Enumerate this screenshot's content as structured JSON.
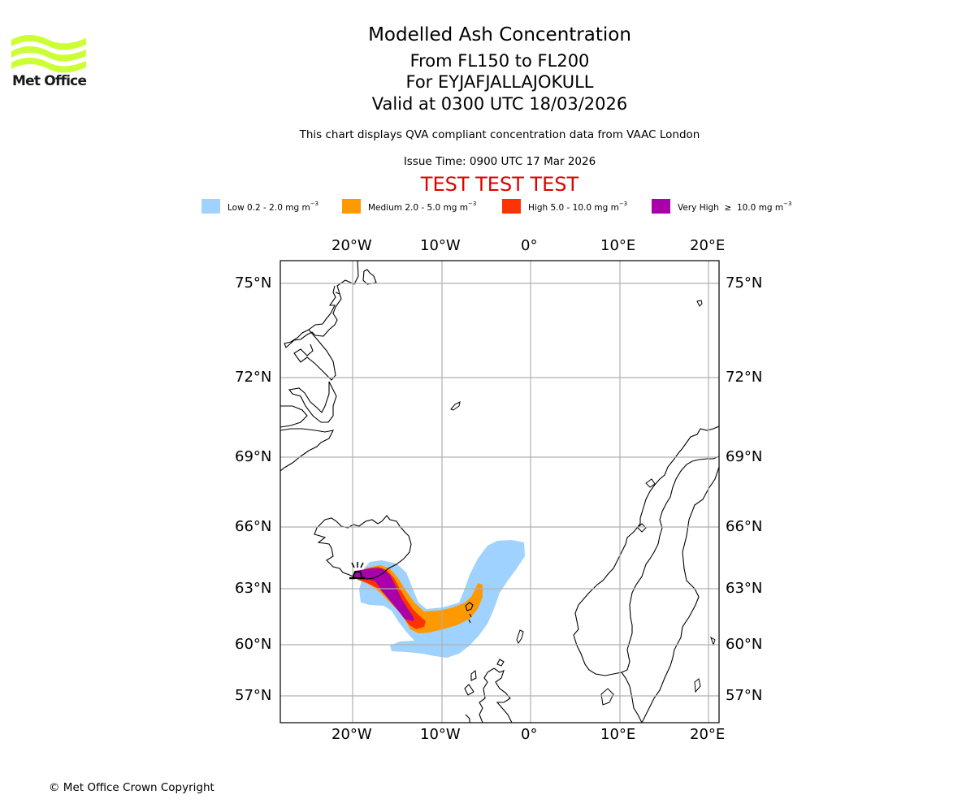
{
  "brand": {
    "logo_text": "Met Office",
    "logo_color": "#ccff33"
  },
  "header": {
    "title": "Modelled Ash Concentration",
    "levels": "From FL150 to FL200",
    "volcano": "For EYJAFJALLAJOKULL",
    "valid": "Valid at 0300 UTC 18/03/2026",
    "description": "This chart displays QVA compliant concentration data from VAAC London",
    "issue_time": "Issue Time: 0900 UTC 17 Mar 2026",
    "test_banner": "TEST TEST TEST",
    "test_color": "#e00000"
  },
  "legend": [
    {
      "label": "Low 0.2 - 2.0 mg m",
      "unit_exp": "−3",
      "color": "#a0d2ff"
    },
    {
      "label": "Medium 2.0 - 5.0 mg m",
      "unit_exp": "−3",
      "color": "#ff9900"
    },
    {
      "label": "High 5.0 - 10.0 mg m",
      "unit_exp": "−3",
      "color": "#ff3300"
    },
    {
      "label": "Very High  ≥  10.0 mg m",
      "unit_exp": "−3",
      "color": "#aa00aa"
    }
  ],
  "axes": {
    "lon_ticks": [
      "20°W",
      "10°W",
      "0°",
      "10°E",
      "20°E"
    ],
    "lat_ticks": [
      "75°N",
      "72°N",
      "69°N",
      "66°N",
      "63°N",
      "60°N",
      "57°N"
    ]
  },
  "chart_data": {
    "type": "map",
    "title": "Modelled Ash Concentration",
    "lon_range": [
      -28,
      21
    ],
    "lat_range": [
      55.5,
      76
    ],
    "lon_gridlines": [
      -20,
      -10,
      0,
      10,
      20
    ],
    "lat_gridlines": [
      75,
      72,
      69,
      66,
      63,
      60,
      57
    ],
    "grid": true,
    "volcano": {
      "name": "EYJAFJALLAJOKULL",
      "lon": -19.6,
      "lat": 63.6
    },
    "ash_levels": [
      "Low",
      "Medium",
      "High",
      "Very High"
    ]
  },
  "footer": {
    "copyright": "© Met Office Crown Copyright"
  }
}
